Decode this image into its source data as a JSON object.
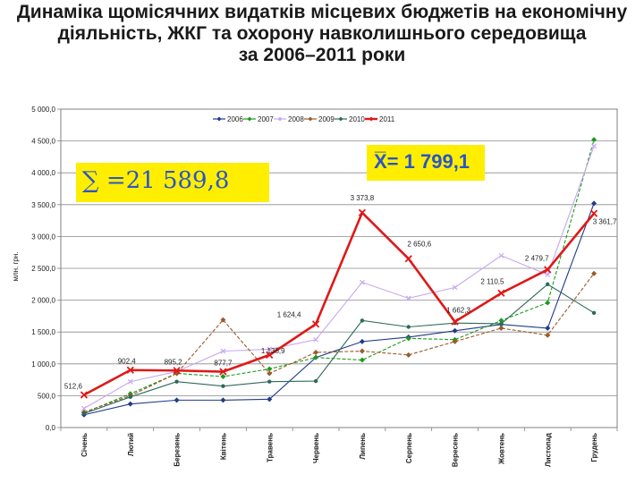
{
  "title_lines": [
    "Динаміка щомісячних видатків місцевих бюджетів на економічну",
    "діяльність, ЖКГ  та охорону навколишнього середовища",
    "за 2006–2011 роки"
  ],
  "sum_label": "∑ =21 589,8",
  "mean_label": "X̅= 1 799,1",
  "colors": {
    "2006": "#1f3a8a",
    "2007": "#1e9a1e",
    "2008": "#c8a8f0",
    "2009": "#9a5a2a",
    "2010": "#2d6a5a",
    "2011": "#e01818",
    "highlight": "#ffee00",
    "highlight_text": "#2a55c8"
  },
  "chart_data": {
    "type": "line",
    "ylabel": "млн. грн.",
    "xlabel": "",
    "ylim": [
      0,
      5000
    ],
    "yticks": [
      "0,0",
      "500,0",
      "1 000,0",
      "1 500,0",
      "2 000,0",
      "2 500,0",
      "3 000,0",
      "3 500,0",
      "4 000,0",
      "4 500,0",
      "5 000,0"
    ],
    "categories": [
      "Січень",
      "Лютий",
      "Березень",
      "Квітень",
      "Травень",
      "Червень",
      "Липень",
      "Серпень",
      "Вересень",
      "Жовтень",
      "Листопад",
      "Грудень"
    ],
    "grid": true,
    "legend": "top",
    "series": [
      {
        "name": "2006",
        "values": [
          200,
          370,
          430,
          430,
          445,
          1100,
          1350,
          1420,
          1520,
          1620,
          1560,
          3520
        ]
      },
      {
        "name": "2007",
        "values": [
          230,
          530,
          850,
          800,
          920,
          1100,
          1060,
          1400,
          1380,
          1680,
          1960,
          4520
        ]
      },
      {
        "name": "2008",
        "values": [
          300,
          720,
          880,
          1200,
          1230,
          1380,
          2280,
          2030,
          2200,
          2700,
          2400,
          4420
        ]
      },
      {
        "name": "2009",
        "values": [
          240,
          500,
          850,
          1690,
          850,
          1180,
          1200,
          1140,
          1350,
          1560,
          1450,
          2420
        ]
      },
      {
        "name": "2010",
        "values": [
          220,
          480,
          720,
          650,
          720,
          730,
          1680,
          1580,
          1640,
          1630,
          2250,
          1800
        ]
      },
      {
        "name": "2011",
        "values": [
          512.6,
          902.4,
          895.2,
          877.7,
          1138.9,
          1624.4,
          3373.8,
          2650.6,
          1662.3,
          2110.5,
          2479.7,
          3361.7
        ]
      }
    ],
    "data_labels": [
      "512,6",
      "902,4",
      "895,2",
      "877,7",
      "1 138,9",
      "1 624,4",
      "3 373,8",
      "2 650,6",
      "1 662,3",
      "2 110,5",
      "2 479,7",
      "3 361,7"
    ]
  }
}
